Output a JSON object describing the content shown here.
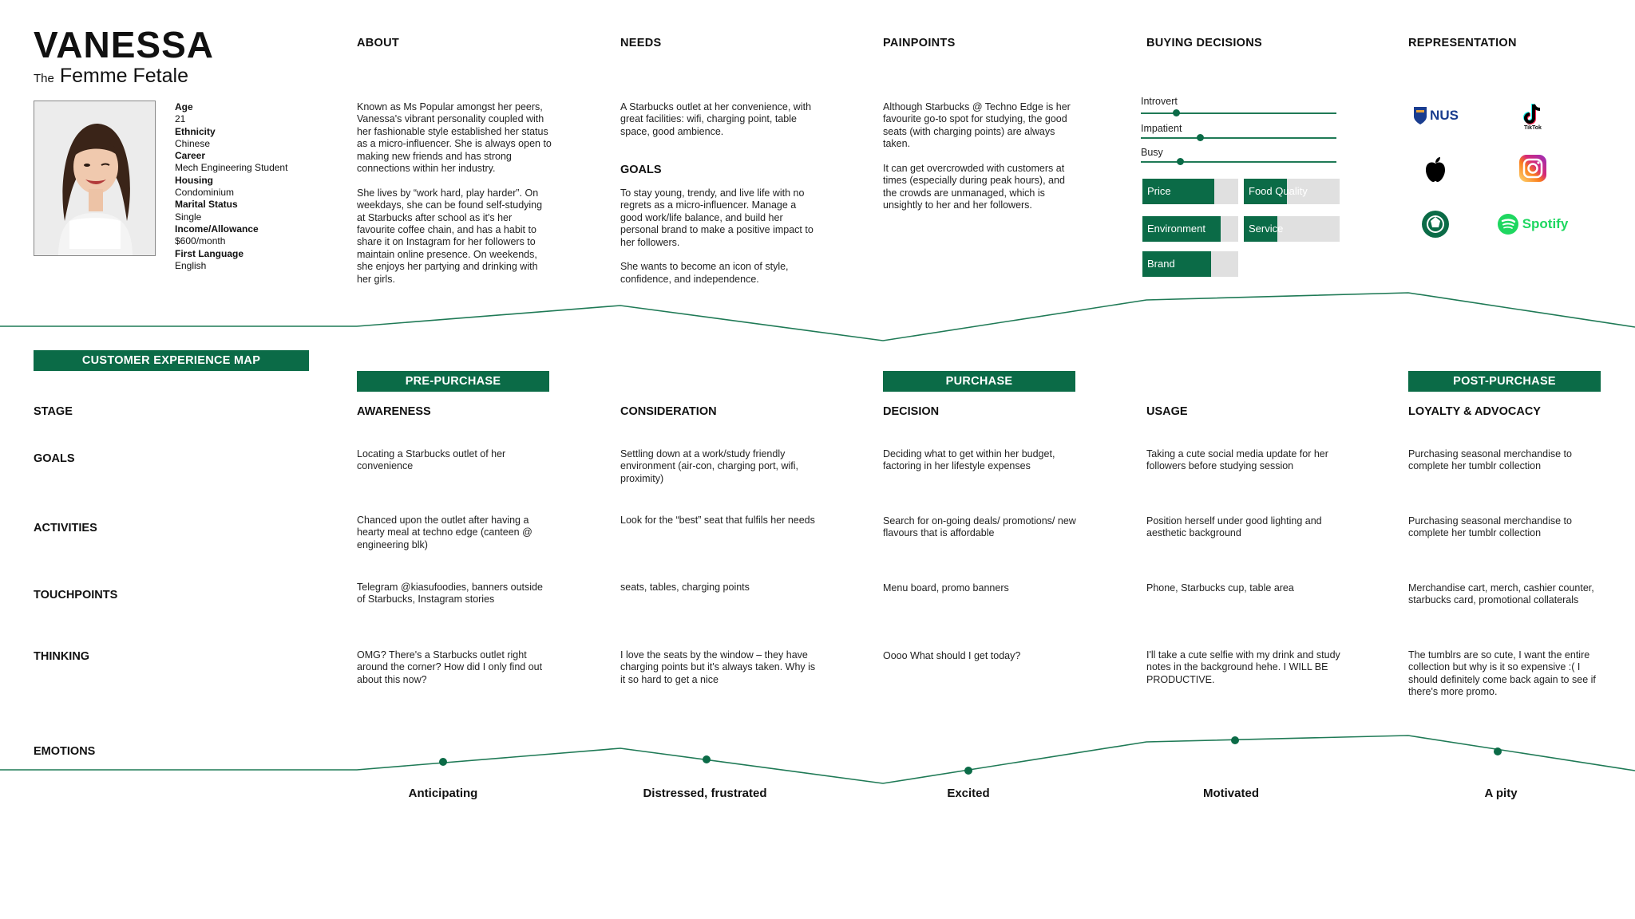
{
  "persona": {
    "name": "VANESSA",
    "subtitle_prefix": "The",
    "subtitle": "Femme Fetale",
    "demographics": [
      {
        "label": "Age",
        "value": "21"
      },
      {
        "label": "Ethnicity",
        "value": "Chinese"
      },
      {
        "label": "Career",
        "value": "Mech Engineering Student"
      },
      {
        "label": "Housing",
        "value": "Condominium"
      },
      {
        "label": "Marital Status",
        "value": "Single"
      },
      {
        "label": "Income/Allowance",
        "value": "$600/month"
      },
      {
        "label": "First Language",
        "value": "English"
      }
    ]
  },
  "about": {
    "heading": "ABOUT",
    "paragraphs": [
      "Known as Ms Popular amongst her peers, Vanessa's vibrant personality coupled with her fashionable style established her status as a micro-influencer. She is always open to making new friends and has strong connections within her industry.",
      "She lives by “work hard, play harder”. On weekdays, she can be found self-studying at Starbucks after school as it's her favourite coffee chain, and has a habit to share it on Instagram for her followers to maintain online presence. On weekends, she enjoys her partying and drinking with her girls."
    ]
  },
  "needs": {
    "heading": "NEEDS",
    "text": "A Starbucks outlet at her convenience, with great facilities: wifi, charging point, table space, good ambience.",
    "goals_heading": "GOALS",
    "goals_paragraphs": [
      "To stay young, trendy, and live life with no regrets as a micro-influencer. Manage a good work/life balance, and build her personal brand to make a positive impact to her followers.",
      "She wants to become an icon of style, confidence, and independence."
    ]
  },
  "painpoints": {
    "heading": "PAINPOINTS",
    "paragraphs": [
      "Although Starbucks @ Techno Edge is her favourite go-to spot for studying, the good seats (with charging points) are always taken.",
      "It can get overcrowded with customers at times (especially during peak hours), and the crowds are unmanaged, which is unsightly to her and her followers."
    ]
  },
  "buying": {
    "heading": "BUYING DECISIONS",
    "sliders": [
      {
        "label": "Introvert",
        "level": 0.18
      },
      {
        "label": "Impatient",
        "level": 0.3
      },
      {
        "label": "Busy",
        "level": 0.2
      }
    ],
    "bars": [
      {
        "label": "Price",
        "level": 0.75
      },
      {
        "label": "Food Quality",
        "level": 0.45
      },
      {
        "label": "Environment",
        "level": 0.82
      },
      {
        "label": "Service",
        "level": 0.35
      },
      {
        "label": "Brand",
        "level": 0.72
      }
    ]
  },
  "representation": {
    "heading": "REPRESENTATION",
    "logos": [
      {
        "icon": "nus-logo",
        "text": "NUS"
      },
      {
        "icon": "tiktok-logo",
        "text": "TikTok"
      },
      {
        "icon": "apple-logo",
        "text": ""
      },
      {
        "icon": "instagram-logo",
        "text": ""
      },
      {
        "icon": "starbucks-logo",
        "text": ""
      },
      {
        "icon": "spotify-logo",
        "text": "Spotify"
      }
    ]
  },
  "map": {
    "title": "CUSTOMER EXPERIENCE MAP",
    "phases": [
      "PRE-PURCHASE",
      "PURCHASE",
      "POST-PURCHASE"
    ],
    "row_labels": [
      "STAGE",
      "GOALS",
      "ACTIVITIES",
      "TOUCHPOINTS",
      "THINKING",
      "EMOTIONS"
    ],
    "stages": [
      {
        "name": "AWARENESS",
        "goals": "Locating a Starbucks outlet of her convenience",
        "activities": "Chanced upon the outlet after having a hearty meal at techno edge (canteen @ engineering blk)",
        "touchpoints": "Telegram @kiasufoodies, banners outside of Starbucks, Instagram stories",
        "thinking": "OMG? There's a Starbucks outlet right around the corner? How did I only find out about this now?",
        "emotion": "Anticipating"
      },
      {
        "name": "CONSIDERATION",
        "goals": "Settling down at a work/study friendly environment (air-con, charging port, wifi, proximity)",
        "activities": "Look for the “best” seat that fulfils her needs",
        "touchpoints": "seats, tables, charging points",
        "thinking": "I love the seats by the window – they have charging points but it's always taken. Why is it so hard to get a nice",
        "emotion": "Distressed, frustrated"
      },
      {
        "name": "DECISION",
        "goals": "Deciding what to get within her budget, factoring in her lifestyle expenses",
        "activities": "Search for on-going deals/ promotions/ new flavours that is affordable",
        "touchpoints": "Menu board, promo banners",
        "thinking": "Oooo What should I get today?",
        "emotion": "Excited"
      },
      {
        "name": "USAGE",
        "goals": "Taking a cute social media update for her followers before studying session",
        "activities": "Position herself under good lighting and aesthetic background",
        "touchpoints": "Phone, Starbucks cup, table area",
        "thinking": "I'll take a cute selfie with my drink and study notes in the background hehe. I WILL BE PRODUCTIVE.",
        "emotion": "Motivated"
      },
      {
        "name": "LOYALTY & ADVOCACY",
        "goals": "Purchasing seasonal merchandise to complete her tumblr collection",
        "activities": "Purchasing seasonal merchandise to complete her tumblr collection",
        "touchpoints": "Merchandise cart, merch, cashier counter, starbucks card, promotional collaterals",
        "thinking": "The tumblrs are so cute, I want the entire collection but why is it so expensive :( I should definitely come back again to see if there's more promo.",
        "emotion": "A pity"
      }
    ]
  },
  "colors": {
    "accent": "#0b6b47",
    "line": "#1f7a56"
  }
}
